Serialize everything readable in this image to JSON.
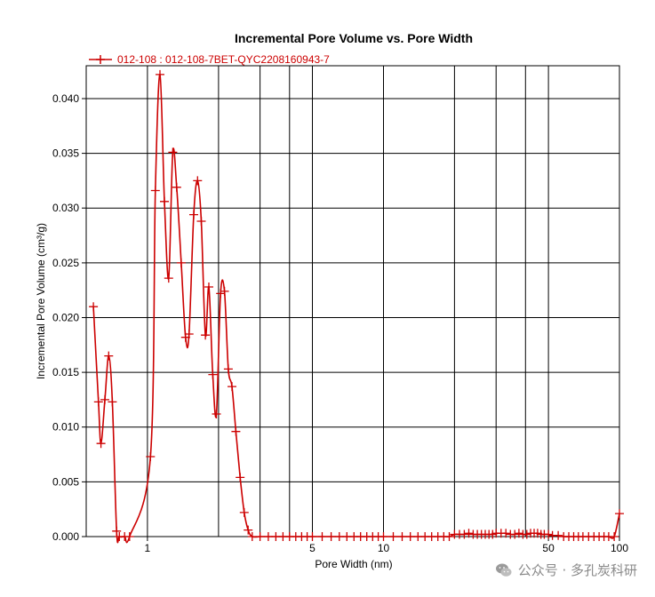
{
  "chart_data": {
    "type": "line",
    "title": "Incremental Pore Volume vs. Pore Width",
    "xlabel": "Pore Width (nm)",
    "ylabel": "Incremental Pore Volume (cm³/g)",
    "x_scale": "log",
    "xlim": [
      0.55,
      100
    ],
    "ylim": [
      0,
      0.043
    ],
    "x_ticks": [
      1,
      5,
      10,
      50,
      100
    ],
    "x_tick_labels": [
      "1",
      "5",
      "10",
      "50",
      "100"
    ],
    "x_gridlines": [
      1,
      2,
      3,
      4,
      5,
      10,
      20,
      30,
      40,
      50,
      100
    ],
    "y_ticks": [
      0,
      0.005,
      0.01,
      0.015,
      0.02,
      0.025,
      0.03,
      0.035,
      0.04
    ],
    "y_tick_labels": [
      "0.000",
      "0.005",
      "0.010",
      "0.015",
      "0.020",
      "0.025",
      "0.030",
      "0.035",
      "0.040"
    ],
    "grid": true,
    "legend_position": "top-left",
    "series": [
      {
        "name": "012-108 : 012-108-7BET-QYC2208160943-7",
        "color": "#cc0000",
        "marker": "plus",
        "points": [
          [
            0.59,
            0.021
          ],
          [
            0.62,
            0.0123
          ],
          [
            0.635,
            0.0085
          ],
          [
            0.66,
            0.0125
          ],
          [
            0.685,
            0.0165
          ],
          [
            0.71,
            0.0123
          ],
          [
            0.74,
            0.0005
          ],
          [
            0.76,
            0.0
          ],
          [
            0.8,
            0.0
          ],
          [
            0.84,
            0.0
          ],
          [
            1.03,
            0.0073
          ],
          [
            1.08,
            0.0316
          ],
          [
            1.13,
            0.0422
          ],
          [
            1.18,
            0.0306
          ],
          [
            1.23,
            0.0236
          ],
          [
            1.28,
            0.0351
          ],
          [
            1.33,
            0.0319
          ],
          [
            1.39,
            0.025
          ],
          [
            1.45,
            0.0182
          ],
          [
            1.5,
            0.0185
          ],
          [
            1.57,
            0.0294
          ],
          [
            1.63,
            0.0325
          ],
          [
            1.69,
            0.0288
          ],
          [
            1.76,
            0.0184
          ],
          [
            1.82,
            0.0228
          ],
          [
            1.89,
            0.0148
          ],
          [
            1.96,
            0.0112
          ],
          [
            2.04,
            0.0222
          ],
          [
            2.12,
            0.0224
          ],
          [
            2.2,
            0.0153
          ],
          [
            2.28,
            0.0137
          ],
          [
            2.37,
            0.0096
          ],
          [
            2.47,
            0.0054
          ],
          [
            2.57,
            0.0022
          ],
          [
            2.67,
            0.0006
          ],
          [
            2.78,
            0.0
          ],
          [
            3.0,
            0.0
          ],
          [
            3.25,
            0.0
          ],
          [
            3.5,
            0.0
          ],
          [
            3.75,
            0.0
          ],
          [
            4.0,
            0.0
          ],
          [
            4.25,
            0.0
          ],
          [
            4.5,
            0.0
          ],
          [
            4.75,
            0.0
          ],
          [
            5.0,
            0.0
          ],
          [
            5.5,
            0.0
          ],
          [
            6.0,
            0.0
          ],
          [
            6.5,
            0.0
          ],
          [
            7.0,
            0.0
          ],
          [
            7.5,
            0.0
          ],
          [
            8.0,
            0.0
          ],
          [
            8.5,
            0.0
          ],
          [
            9.0,
            0.0
          ],
          [
            9.5,
            0.0
          ],
          [
            10.0,
            0.0
          ],
          [
            11.0,
            0.0
          ],
          [
            12.0,
            0.0
          ],
          [
            13.0,
            0.0
          ],
          [
            14.0,
            0.0
          ],
          [
            15.0,
            0.0
          ],
          [
            16.0,
            0.0
          ],
          [
            17.0,
            0.0
          ],
          [
            18.0,
            0.0
          ],
          [
            19.0,
            0.0
          ],
          [
            20.0,
            0.0002
          ],
          [
            21.0,
            0.0002
          ],
          [
            22.0,
            0.0002
          ],
          [
            23.0,
            0.0003
          ],
          [
            24.0,
            0.0002
          ],
          [
            25.0,
            0.0002
          ],
          [
            26.0,
            0.0002
          ],
          [
            27.0,
            0.0002
          ],
          [
            28.0,
            0.0002
          ],
          [
            29.0,
            0.0002
          ],
          [
            30.0,
            0.0003
          ],
          [
            31.5,
            0.0003
          ],
          [
            33.0,
            0.0003
          ],
          [
            34.5,
            0.0002
          ],
          [
            36.0,
            0.0002
          ],
          [
            37.5,
            0.0003
          ],
          [
            39.0,
            0.0002
          ],
          [
            40.5,
            0.0002
          ],
          [
            42.0,
            0.0003
          ],
          [
            43.5,
            0.0003
          ],
          [
            45.0,
            0.0003
          ],
          [
            46.5,
            0.0002
          ],
          [
            48.0,
            0.0002
          ],
          [
            50.0,
            0.0002
          ],
          [
            52.0,
            0.0001
          ],
          [
            55.0,
            0.0001
          ],
          [
            58.0,
            0.0
          ],
          [
            61.0,
            0.0
          ],
          [
            64.0,
            0.0
          ],
          [
            67.0,
            0.0
          ],
          [
            70.0,
            0.0
          ],
          [
            74.0,
            0.0
          ],
          [
            78.0,
            0.0
          ],
          [
            82.0,
            0.0
          ],
          [
            86.0,
            0.0
          ],
          [
            90.0,
            0.0
          ],
          [
            95.0,
            0.0
          ],
          [
            100.0,
            0.0021
          ]
        ]
      }
    ]
  },
  "watermark": {
    "text": "公众号 · 多孔炭科研",
    "icon": "wechat-icon"
  }
}
